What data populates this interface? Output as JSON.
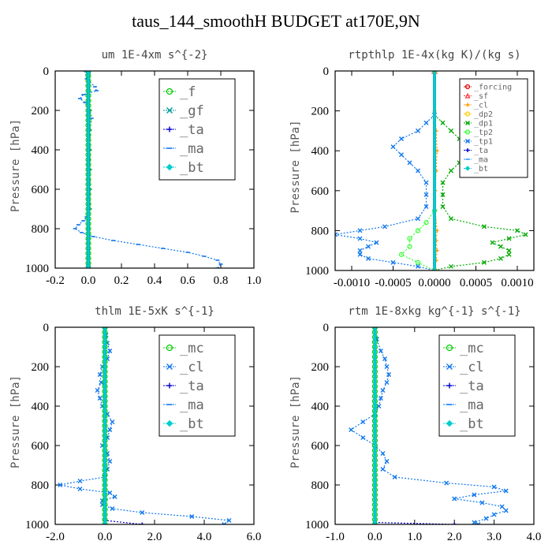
{
  "title": "taus_144_smoothH  BUDGET at170E,9N",
  "chart_data": [
    {
      "type": "line",
      "title": "um  1E-4xm s^{-2}",
      "ylabel": "Pressure [hPa]",
      "xlim": [
        -0.2,
        1.0
      ],
      "ylim": [
        1000,
        0
      ],
      "xticks": [
        -0.2,
        0.0,
        0.2,
        0.4,
        0.6,
        0.8,
        1.0
      ],
      "xtick_labels": [
        "-0.2",
        "0.0",
        "0.2",
        "0.4",
        "0.6",
        "0.8",
        "1.0"
      ],
      "yticks": [
        0,
        200,
        400,
        600,
        800,
        1000
      ],
      "ytick_labels": [
        "0",
        "200",
        "400",
        "600",
        "800",
        "1000"
      ],
      "legend_position": "top-right",
      "legend_size": "large",
      "series": [
        {
          "name": "_f",
          "color": "#00cc00",
          "marker": "circle",
          "y": [
            0,
            25,
            50,
            75,
            100,
            125,
            150,
            175,
            200,
            225,
            250,
            275,
            300,
            325,
            350,
            375,
            400,
            425,
            450,
            475,
            500,
            525,
            550,
            575,
            600,
            625,
            650,
            675,
            700,
            725,
            750,
            775,
            800,
            825,
            850,
            875,
            900,
            925,
            950,
            975,
            1000
          ],
          "x": [
            0,
            0,
            0,
            0,
            0,
            0,
            0,
            0,
            0,
            0,
            0,
            0,
            0,
            0,
            0,
            0,
            0,
            0,
            0,
            0,
            0,
            0,
            0,
            0,
            0,
            0,
            0,
            0,
            0,
            0,
            0,
            0,
            0,
            0,
            0,
            0,
            0,
            0,
            0,
            0,
            0
          ]
        },
        {
          "name": "_gf",
          "color": "#009999",
          "marker": "x",
          "y": [
            0,
            1000
          ],
          "x": [
            0,
            0
          ]
        },
        {
          "name": "_ta",
          "color": "#0000cc",
          "marker": "plus",
          "y": [
            0,
            1000
          ],
          "x": [
            0,
            0
          ]
        },
        {
          "name": "_ma",
          "color": "#1177ee",
          "marker": "dash",
          "y": [
            0,
            40,
            80,
            100,
            120,
            140,
            160,
            200,
            240,
            300,
            400,
            500,
            600,
            700,
            740,
            760,
            780,
            800,
            820,
            840,
            860,
            880,
            900,
            920,
            940,
            960,
            980,
            1000
          ],
          "x": [
            -0.02,
            -0.01,
            0.04,
            0.05,
            -0.03,
            -0.05,
            -0.02,
            0.01,
            0.02,
            0.01,
            0.01,
            0.01,
            0.01,
            0.01,
            -0.01,
            -0.03,
            -0.06,
            -0.08,
            -0.04,
            0.03,
            0.15,
            0.3,
            0.45,
            0.6,
            0.7,
            0.78,
            0.8,
            0.78
          ]
        },
        {
          "name": "_bt",
          "color": "#00cccc",
          "marker": "diamond",
          "y": [
            0,
            1000
          ],
          "x": [
            0,
            0
          ]
        }
      ]
    },
    {
      "type": "line",
      "title": "rtpthlp  1E-4x(kg K)/(kg s)",
      "ylabel": "Pressure [hPa]",
      "xlim": [
        -0.0012,
        0.0012
      ],
      "ylim": [
        1000,
        0
      ],
      "xticks": [
        -0.001,
        -0.0005,
        0.0,
        0.0005,
        0.001
      ],
      "xtick_labels": [
        "-0.0010",
        "-0.0005",
        "0.0000",
        "0.0005",
        "0.0010"
      ],
      "yticks": [
        0,
        200,
        400,
        600,
        800,
        1000
      ],
      "ytick_labels": [
        "0",
        "200",
        "400",
        "600",
        "800",
        "1000"
      ],
      "legend_position": "top-right",
      "legend_size": "small",
      "series": [
        {
          "name": "_forcing",
          "color": "#dd0000",
          "marker": "circle",
          "y": [
            0,
            1000
          ],
          "x": [
            0,
            0
          ]
        },
        {
          "name": "_sf",
          "color": "#ff3333",
          "marker": "triangle",
          "y": [
            0,
            1000
          ],
          "x": [
            0,
            0
          ]
        },
        {
          "name": "_cl",
          "color": "#ff9900",
          "marker": "plus",
          "y": [
            0,
            200,
            300,
            400,
            500,
            600,
            700,
            800,
            850,
            900,
            950,
            1000
          ],
          "x": [
            0,
            0,
            2e-05,
            3e-05,
            2e-05,
            1e-05,
            1e-05,
            3e-05,
            2e-05,
            3e-05,
            2e-05,
            0
          ]
        },
        {
          "name": "_dp2",
          "color": "#ffcc00",
          "marker": "circle",
          "y": [
            0,
            1000
          ],
          "x": [
            0,
            0
          ]
        },
        {
          "name": "_dp1",
          "color": "#00aa00",
          "marker": "x",
          "y": [
            0,
            220,
            260,
            300,
            340,
            380,
            420,
            460,
            500,
            560,
            620,
            680,
            740,
            780,
            800,
            820,
            840,
            860,
            880,
            900,
            920,
            940,
            960,
            980,
            1000
          ],
          "x": [
            0,
            0,
            0.0001,
            0.0002,
            0.0003,
            0.0004,
            0.0004,
            0.0003,
            0.0002,
            0.0001,
            0.0001,
            0.0001,
            0.0002,
            0.0006,
            0.001,
            0.0011,
            0.0009,
            0.0007,
            0.0008,
            0.0009,
            0.0009,
            0.0008,
            0.0006,
            0.0002,
            0
          ]
        },
        {
          "name": "_tp2",
          "color": "#33ff33",
          "marker": "circle",
          "y": [
            0,
            700,
            760,
            800,
            840,
            880,
            920,
            960,
            1000
          ],
          "x": [
            0,
            0,
            -0.0001,
            -0.0002,
            -0.0003,
            -0.0003,
            -0.0004,
            -0.0002,
            0
          ]
        },
        {
          "name": "_tp1",
          "color": "#1177ee",
          "marker": "x",
          "y": [
            0,
            220,
            260,
            300,
            340,
            380,
            420,
            460,
            500,
            560,
            620,
            680,
            740,
            780,
            800,
            820,
            840,
            860,
            880,
            900,
            920,
            940,
            960,
            980,
            1000
          ],
          "x": [
            0,
            0,
            -0.0001,
            -0.0002,
            -0.0004,
            -0.0005,
            -0.0004,
            -0.0003,
            -0.0002,
            -0.0001,
            -0.0001,
            -0.0001,
            -0.0002,
            -0.0006,
            -0.0009,
            -0.0012,
            -0.0009,
            -0.0007,
            -0.0008,
            -0.0009,
            -0.0009,
            -0.0008,
            -0.0005,
            -0.0002,
            0
          ]
        },
        {
          "name": "_ta",
          "color": "#0000cc",
          "marker": "plus",
          "y": [
            0,
            1000
          ],
          "x": [
            0,
            0
          ]
        },
        {
          "name": "_ma",
          "color": "#3399ff",
          "marker": "dash",
          "y": [
            0,
            1000
          ],
          "x": [
            0,
            0
          ]
        },
        {
          "name": "_bt",
          "color": "#00cccc",
          "marker": "diamond",
          "y": [
            0,
            1000
          ],
          "x": [
            0,
            0
          ]
        }
      ]
    },
    {
      "type": "line",
      "title": "thlm  1E-5xK s^{-1}",
      "ylabel": "Pressure [hPa]",
      "xlim": [
        -2.0,
        6.0
      ],
      "ylim": [
        1000,
        0
      ],
      "xticks": [
        -2.0,
        0.0,
        2.0,
        4.0,
        6.0
      ],
      "xtick_labels": [
        "-2.0",
        "0.0",
        "2.0",
        "4.0",
        "6.0"
      ],
      "yticks": [
        0,
        200,
        400,
        600,
        800,
        1000
      ],
      "ytick_labels": [
        "0",
        "200",
        "400",
        "600",
        "800",
        "1000"
      ],
      "legend_position": "top-right",
      "legend_size": "large",
      "series": [
        {
          "name": "_mc",
          "color": "#00cc00",
          "marker": "circle",
          "y": [
            0,
            25,
            50,
            75,
            100,
            125,
            150,
            175,
            200,
            225,
            250,
            275,
            300,
            325,
            350,
            375,
            400,
            425,
            450,
            475,
            500,
            525,
            550,
            575,
            600,
            625,
            650,
            675,
            700,
            725,
            750,
            775,
            800,
            825,
            850,
            875,
            900,
            925,
            950,
            975,
            1000
          ],
          "x": [
            0,
            0,
            0,
            0,
            0,
            0,
            0,
            0,
            0,
            0,
            0,
            0,
            0,
            0,
            0,
            0,
            0,
            0,
            0,
            0,
            0,
            0,
            0,
            0,
            0,
            0,
            0,
            0,
            0,
            0,
            0,
            0,
            0,
            0,
            0,
            0,
            0,
            0,
            0,
            0,
            0
          ]
        },
        {
          "name": "_cl",
          "color": "#1177ee",
          "marker": "x",
          "y": [
            0,
            40,
            80,
            120,
            160,
            200,
            240,
            280,
            320,
            360,
            400,
            440,
            480,
            520,
            560,
            600,
            640,
            680,
            720,
            760,
            780,
            800,
            820,
            840,
            860,
            880,
            900,
            920,
            940,
            960,
            980,
            1000
          ],
          "x": [
            0,
            0.05,
            0.1,
            0.2,
            0.1,
            -0.1,
            -0.2,
            -0.15,
            -0.3,
            -0.2,
            -0.1,
            0.1,
            0.3,
            0.2,
            0.1,
            -0.1,
            0.1,
            0.2,
            0.1,
            0.0,
            -1.0,
            -1.8,
            -1.0,
            0.2,
            0.4,
            -0.1,
            -0.1,
            0.3,
            1.5,
            3.5,
            5.0,
            4.8
          ]
        },
        {
          "name": "_ta",
          "color": "#0000cc",
          "marker": "plus",
          "y": [
            0,
            980,
            1000
          ],
          "x": [
            0,
            0,
            1.5
          ]
        },
        {
          "name": "_ma",
          "color": "#1177ee",
          "marker": "dash",
          "y": [
            0,
            1000
          ],
          "x": [
            0,
            0
          ]
        },
        {
          "name": "_bt",
          "color": "#00cccc",
          "marker": "diamond",
          "y": [
            0,
            1000
          ],
          "x": [
            0,
            0
          ]
        }
      ]
    },
    {
      "type": "line",
      "title": "rtm  1E-8xkg kg^{-1} s^{-1}",
      "ylabel": "Pressure [hPa]",
      "xlim": [
        -1.0,
        4.0
      ],
      "ylim": [
        1000,
        0
      ],
      "xticks": [
        -1.0,
        0.0,
        1.0,
        2.0,
        3.0,
        4.0
      ],
      "xtick_labels": [
        "-1.0",
        "0.0",
        "1.0",
        "2.0",
        "3.0",
        "4.0"
      ],
      "yticks": [
        0,
        200,
        400,
        600,
        800,
        1000
      ],
      "ytick_labels": [
        "0",
        "200",
        "400",
        "600",
        "800",
        "1000"
      ],
      "legend_position": "top-right",
      "legend_size": "large",
      "series": [
        {
          "name": "_mc",
          "color": "#00cc00",
          "marker": "circle",
          "y": [
            0,
            25,
            50,
            75,
            100,
            125,
            150,
            175,
            200,
            225,
            250,
            275,
            300,
            325,
            350,
            375,
            400,
            425,
            450,
            475,
            500,
            525,
            550,
            575,
            600,
            625,
            650,
            675,
            700,
            725,
            750,
            775,
            800,
            825,
            850,
            875,
            900,
            925,
            950,
            975,
            1000
          ],
          "x": [
            0,
            0,
            0,
            0,
            0,
            0,
            0,
            0,
            0,
            0,
            0,
            0,
            0,
            0,
            0,
            0,
            0,
            0,
            0,
            0,
            0,
            0,
            0,
            0,
            0,
            0,
            0,
            0,
            0,
            0,
            0,
            0,
            0,
            0,
            0,
            0,
            0,
            0,
            0,
            0,
            0
          ]
        },
        {
          "name": "_cl",
          "color": "#1177ee",
          "marker": "x",
          "y": [
            0,
            60,
            120,
            160,
            200,
            240,
            280,
            320,
            360,
            400,
            440,
            480,
            520,
            560,
            600,
            640,
            680,
            720,
            760,
            790,
            810,
            830,
            850,
            870,
            890,
            910,
            930,
            950,
            970,
            990,
            1000
          ],
          "x": [
            0,
            0.05,
            0.15,
            0.25,
            0.3,
            0.35,
            0.3,
            0.2,
            0.15,
            0.1,
            0.0,
            -0.3,
            -0.6,
            -0.3,
            0.0,
            0.2,
            0.3,
            0.2,
            0.5,
            1.8,
            3.0,
            3.3,
            2.5,
            2.0,
            2.7,
            3.2,
            3.3,
            3.0,
            2.8,
            2.5,
            2.6
          ]
        },
        {
          "name": "_ta",
          "color": "#0000cc",
          "marker": "plus",
          "y": [
            0,
            990,
            1000
          ],
          "x": [
            0,
            0,
            2.0
          ]
        },
        {
          "name": "_ma",
          "color": "#1177ee",
          "marker": "dash",
          "y": [
            0,
            1000
          ],
          "x": [
            0,
            0
          ]
        },
        {
          "name": "_bt",
          "color": "#00cccc",
          "marker": "diamond",
          "y": [
            0,
            1000
          ],
          "x": [
            0,
            0
          ]
        }
      ]
    }
  ]
}
